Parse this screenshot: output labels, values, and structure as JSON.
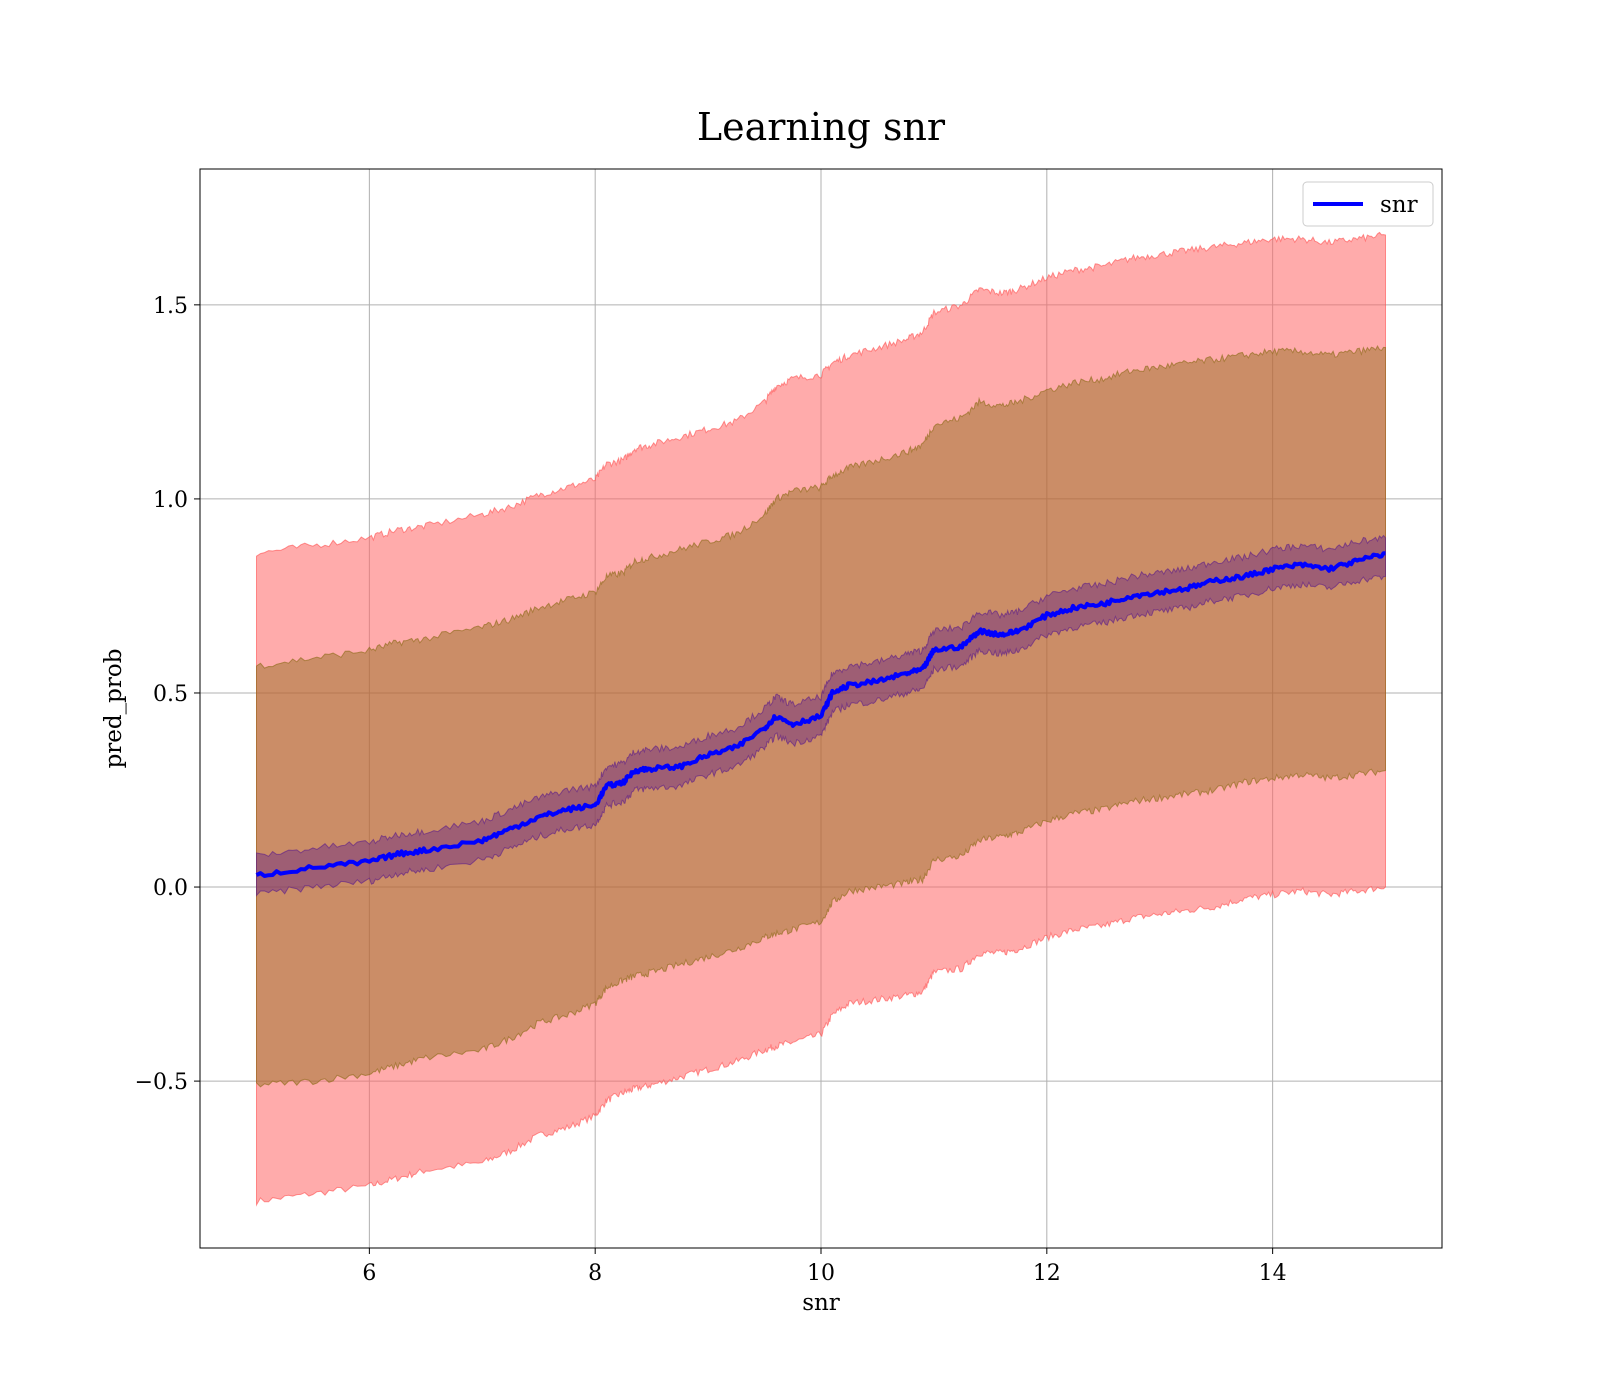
{
  "chart_data": {
    "type": "line",
    "title": "Learning snr",
    "xlabel": "snr",
    "ylabel": "pred_prob",
    "xlim": [
      4.5,
      15.5
    ],
    "ylim": [
      -0.93,
      1.85
    ],
    "xticks": [
      6,
      8,
      10,
      12,
      14
    ],
    "xtick_labels": [
      "6",
      "8",
      "10",
      "12",
      "14"
    ],
    "yticks": [
      -0.5,
      0.0,
      0.5,
      1.0,
      1.5
    ],
    "ytick_labels": [
      "−0.5",
      "0.0",
      "0.5",
      "1.0",
      "1.5"
    ],
    "grid": true,
    "legend": {
      "position": "top-right",
      "entries": [
        "snr"
      ]
    },
    "colors": {
      "line": "#0000ff",
      "outer_band": "#ff000055",
      "middle_band": "#8b6914",
      "inner_band": "#5a1a8a",
      "grid": "#b0b0b0"
    },
    "series": [
      {
        "name": "snr",
        "x": [
          5.0,
          5.5,
          6.0,
          6.25,
          6.5,
          7.0,
          7.25,
          7.5,
          7.75,
          8.0,
          8.1,
          8.25,
          8.35,
          8.5,
          8.75,
          9.0,
          9.25,
          9.5,
          9.6,
          9.75,
          10.0,
          10.1,
          10.25,
          10.5,
          10.75,
          10.9,
          11.0,
          11.25,
          11.4,
          11.6,
          11.75,
          12.0,
          12.25,
          12.5,
          12.75,
          13.0,
          13.25,
          13.5,
          13.75,
          14.0,
          14.25,
          14.5,
          14.75,
          15.0
        ],
        "mean": [
          0.03,
          0.05,
          0.065,
          0.085,
          0.095,
          0.12,
          0.15,
          0.18,
          0.2,
          0.21,
          0.26,
          0.27,
          0.3,
          0.305,
          0.31,
          0.34,
          0.36,
          0.41,
          0.44,
          0.42,
          0.44,
          0.5,
          0.52,
          0.53,
          0.55,
          0.56,
          0.61,
          0.62,
          0.66,
          0.65,
          0.66,
          0.7,
          0.72,
          0.73,
          0.75,
          0.76,
          0.77,
          0.79,
          0.8,
          0.82,
          0.83,
          0.82,
          0.84,
          0.86
        ],
        "inner_lower": [
          -0.02,
          0.0,
          0.015,
          0.035,
          0.045,
          0.07,
          0.1,
          0.13,
          0.15,
          0.16,
          0.21,
          0.22,
          0.25,
          0.255,
          0.26,
          0.29,
          0.31,
          0.36,
          0.39,
          0.37,
          0.39,
          0.45,
          0.47,
          0.48,
          0.5,
          0.51,
          0.56,
          0.57,
          0.61,
          0.6,
          0.61,
          0.65,
          0.67,
          0.68,
          0.7,
          0.71,
          0.72,
          0.74,
          0.75,
          0.77,
          0.78,
          0.77,
          0.79,
          0.8
        ],
        "inner_upper": [
          0.08,
          0.1,
          0.115,
          0.135,
          0.145,
          0.17,
          0.2,
          0.23,
          0.25,
          0.26,
          0.31,
          0.32,
          0.35,
          0.355,
          0.36,
          0.39,
          0.41,
          0.46,
          0.49,
          0.47,
          0.49,
          0.55,
          0.57,
          0.58,
          0.6,
          0.61,
          0.66,
          0.67,
          0.71,
          0.7,
          0.71,
          0.75,
          0.77,
          0.78,
          0.8,
          0.81,
          0.82,
          0.84,
          0.85,
          0.87,
          0.88,
          0.87,
          0.89,
          0.9
        ],
        "middle_lower": [
          -0.51,
          -0.5,
          -0.48,
          -0.46,
          -0.44,
          -0.42,
          -0.39,
          -0.35,
          -0.33,
          -0.3,
          -0.26,
          -0.24,
          -0.23,
          -0.22,
          -0.2,
          -0.18,
          -0.16,
          -0.13,
          -0.12,
          -0.11,
          -0.09,
          -0.04,
          -0.01,
          0.0,
          0.01,
          0.02,
          0.07,
          0.08,
          0.12,
          0.13,
          0.14,
          0.17,
          0.19,
          0.2,
          0.22,
          0.23,
          0.24,
          0.25,
          0.27,
          0.28,
          0.29,
          0.28,
          0.29,
          0.3
        ],
        "middle_upper": [
          0.57,
          0.59,
          0.61,
          0.63,
          0.64,
          0.67,
          0.69,
          0.72,
          0.74,
          0.76,
          0.8,
          0.81,
          0.84,
          0.85,
          0.87,
          0.89,
          0.91,
          0.96,
          1.0,
          1.02,
          1.03,
          1.06,
          1.08,
          1.1,
          1.12,
          1.14,
          1.19,
          1.21,
          1.25,
          1.24,
          1.25,
          1.28,
          1.3,
          1.31,
          1.33,
          1.34,
          1.35,
          1.36,
          1.37,
          1.38,
          1.38,
          1.37,
          1.38,
          1.39
        ],
        "outer_lower": [
          -0.81,
          -0.79,
          -0.77,
          -0.75,
          -0.73,
          -0.71,
          -0.68,
          -0.64,
          -0.62,
          -0.59,
          -0.55,
          -0.53,
          -0.52,
          -0.51,
          -0.49,
          -0.47,
          -0.45,
          -0.42,
          -0.41,
          -0.4,
          -0.38,
          -0.33,
          -0.3,
          -0.29,
          -0.28,
          -0.27,
          -0.22,
          -0.21,
          -0.17,
          -0.17,
          -0.16,
          -0.13,
          -0.11,
          -0.1,
          -0.08,
          -0.07,
          -0.06,
          -0.05,
          -0.03,
          -0.02,
          -0.01,
          -0.02,
          -0.01,
          0.0
        ],
        "outer_upper": [
          0.86,
          0.88,
          0.9,
          0.92,
          0.93,
          0.96,
          0.98,
          1.01,
          1.03,
          1.05,
          1.09,
          1.1,
          1.13,
          1.14,
          1.16,
          1.18,
          1.2,
          1.25,
          1.29,
          1.31,
          1.32,
          1.35,
          1.37,
          1.39,
          1.41,
          1.43,
          1.48,
          1.5,
          1.54,
          1.53,
          1.54,
          1.57,
          1.59,
          1.6,
          1.62,
          1.63,
          1.64,
          1.65,
          1.66,
          1.67,
          1.67,
          1.66,
          1.67,
          1.68
        ]
      }
    ]
  }
}
